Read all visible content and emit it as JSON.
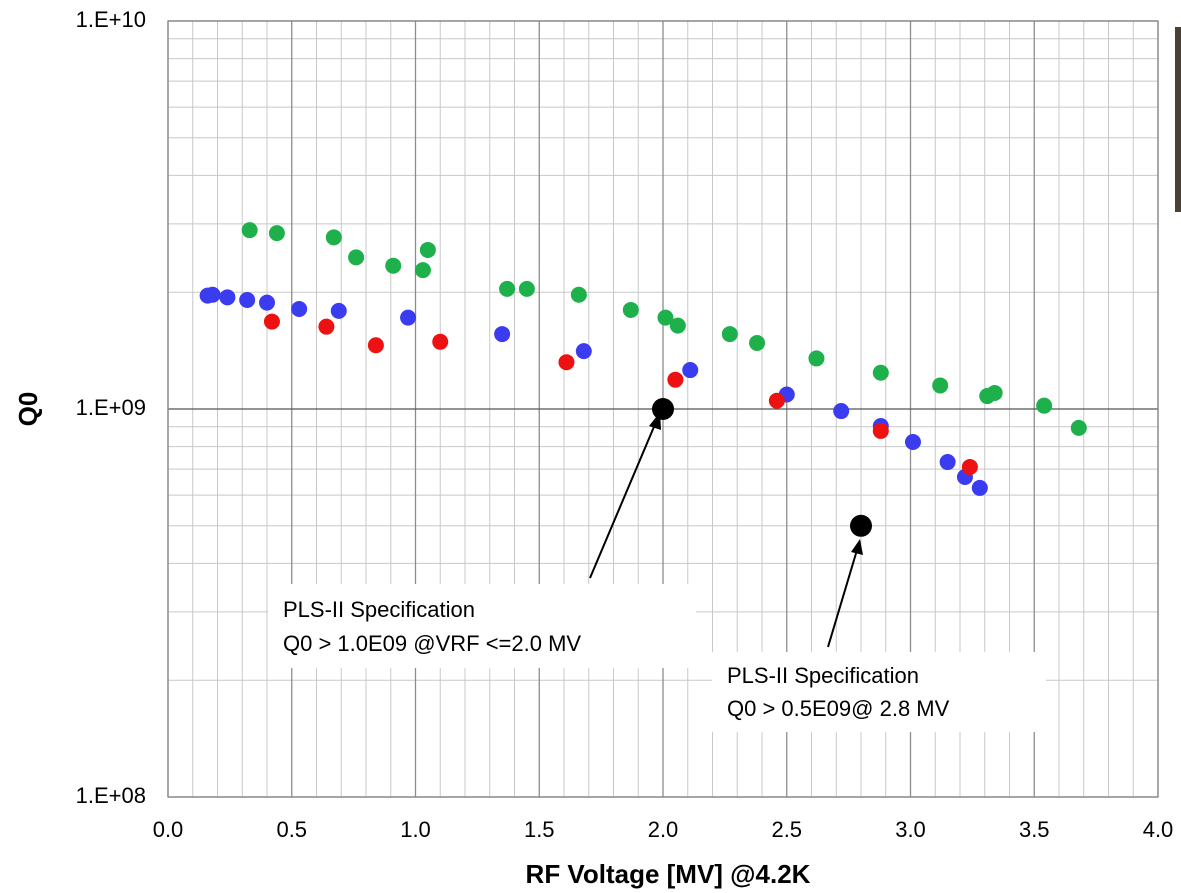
{
  "chart_data": {
    "type": "scatter",
    "x_label": "RF Voltage [MV] @4.2K",
    "y_label": "Q0",
    "xlim": [
      0,
      4
    ],
    "ylim": [
      100000000,
      10000000000
    ],
    "log_y": true,
    "grid": true,
    "xticks": [
      {
        "value": 0,
        "label": "0.0"
      },
      0.5,
      {
        "value": 1,
        "label": "1.0"
      },
      1.5,
      {
        "value": 2,
        "label": "2.0"
      },
      2.5,
      {
        "value": 3,
        "label": "3.0"
      },
      3.5,
      {
        "value": 4,
        "label": "4.0"
      }
    ],
    "yticks": [
      {
        "value": 100000000,
        "label": "1.E+08"
      },
      {
        "value": 1000000000,
        "label": "1.E+09"
      },
      {
        "value": 10000000000,
        "label": "1.E+10"
      }
    ],
    "series": [
      {
        "color": "#1db04b",
        "size": 8,
        "x": [
          0.33,
          0.44,
          0.67,
          0.76,
          0.91,
          1.03,
          1.05,
          1.37,
          1.45,
          1.66,
          1.87,
          2.01,
          2.06,
          2.27,
          2.38,
          2.62,
          2.88,
          3.12,
          3.31,
          3.34,
          3.54,
          3.68
        ],
        "values": [
          2890000000,
          2840000000,
          2770000000,
          2460000000,
          2340000000,
          2280000000,
          2570000000,
          2040000000,
          2040000000,
          1970000000,
          1800000000,
          1720000000,
          1640000000,
          1560000000,
          1480000000,
          1350000000,
          1240000000,
          1150000000,
          1080000000,
          1100000000,
          1020000000,
          894000000
        ]
      },
      {
        "color": "#3b3bf0",
        "size": 8,
        "x": [
          0.16,
          0.18,
          0.24,
          0.32,
          0.4,
          0.53,
          0.69,
          0.97,
          1.35,
          1.68,
          2.11,
          2.5,
          2.72,
          2.88,
          3.01,
          3.15,
          3.22,
          3.28
        ],
        "values": [
          1960000000,
          1970000000,
          1940000000,
          1910000000,
          1880000000,
          1810000000,
          1790000000,
          1720000000,
          1560000000,
          1410000000,
          1260000000,
          1090000000,
          988000000,
          904000000,
          822000000,
          730000000,
          668000000,
          626000000
        ]
      },
      {
        "color": "#ee1111",
        "size": 8,
        "x": [
          0.42,
          0.64,
          0.84,
          1.1,
          1.61,
          2.05,
          2.46,
          2.88,
          3.24
        ],
        "values": [
          1680000000,
          1630000000,
          1460000000,
          1490000000,
          1320000000,
          1190000000,
          1050000000,
          878000000,
          709000000
        ]
      },
      {
        "color": "#000000",
        "size": 11,
        "x": [
          2.0,
          2.8
        ],
        "values": [
          1000000000,
          500000000
        ]
      }
    ],
    "annotations": [
      {
        "lines": [
          "PLS-II Specification",
          "Q0 > 1.0E09 @VRF <=2.0 MV"
        ]
      },
      {
        "lines": [
          "PLS-II Specification",
          "Q0 > 0.5E09@ 2.8 MV"
        ]
      }
    ]
  }
}
